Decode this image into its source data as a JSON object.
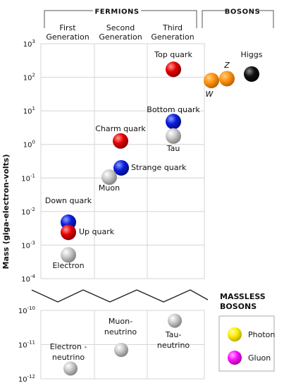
{
  "chart_data": {
    "type": "scatter",
    "ylabel": "Mass (giga-electron-volts)",
    "scale": "log",
    "group_headers": {
      "fermions": "FERMIONS",
      "bosons": "BOSONS"
    },
    "columns": [
      {
        "id": "c1",
        "line1": "First",
        "line2": "Generation"
      },
      {
        "id": "c2",
        "line1": "Second",
        "line2": "Generation"
      },
      {
        "id": "c3",
        "line1": "Third",
        "line2": "Generation"
      }
    ],
    "upper_axis": {
      "ylim_exp": [
        -4,
        3
      ],
      "ticks": [
        {
          "label": "10",
          "exp": "3"
        },
        {
          "label": "10",
          "exp": "2"
        },
        {
          "label": "10",
          "exp": "1"
        },
        {
          "label": "10",
          "exp": "0"
        },
        {
          "label": "10",
          "exp": "-1"
        },
        {
          "label": "10",
          "exp": "-2"
        },
        {
          "label": "10",
          "exp": "-3"
        },
        {
          "label": "10",
          "exp": "-4"
        }
      ]
    },
    "lower_axis": {
      "ylim_exp": [
        -12,
        -10
      ],
      "ticks": [
        {
          "label": "10",
          "exp": "-10"
        },
        {
          "label": "10",
          "exp": "-11"
        },
        {
          "label": "10",
          "exp": "-12"
        }
      ]
    },
    "particles": [
      {
        "name": "Top quark",
        "mass_gev": 173,
        "column": "c3",
        "color": "red",
        "label": "Top quark"
      },
      {
        "name": "Bottom quark",
        "mass_gev": 4.8,
        "column": "c3",
        "color": "blue",
        "label": "Bottom quark"
      },
      {
        "name": "Tau",
        "mass_gev": 1.78,
        "column": "c3",
        "color": "gray",
        "label": "Tau"
      },
      {
        "name": "Charm quark",
        "mass_gev": 1.27,
        "column": "c2",
        "color": "red",
        "label": "Charm quark"
      },
      {
        "name": "Strange quark",
        "mass_gev": 0.2,
        "column": "c2",
        "color": "blue",
        "label": "Strange quark"
      },
      {
        "name": "Muon",
        "mass_gev": 0.106,
        "column": "c2",
        "color": "gray",
        "label": "Muon"
      },
      {
        "name": "Down quark",
        "mass_gev": 0.0048,
        "column": "c1",
        "color": "blue",
        "label": "Down quark"
      },
      {
        "name": "Up quark",
        "mass_gev": 0.0024,
        "column": "c1",
        "color": "red",
        "label": "Up quark"
      },
      {
        "name": "Electron",
        "mass_gev": 0.000511,
        "column": "c1",
        "color": "gray",
        "label": "Electron"
      },
      {
        "name": "W",
        "mass_gev": 80.4,
        "column": "bosons",
        "color": "orange",
        "label": "W"
      },
      {
        "name": "Z",
        "mass_gev": 91.2,
        "column": "bosons",
        "color": "orange",
        "label": "Z"
      },
      {
        "name": "Higgs",
        "mass_gev": 125,
        "column": "bosons",
        "color": "black",
        "label": "Higgs"
      }
    ],
    "neutrinos": [
      {
        "name": "Electron-neutrino",
        "mass_gev": 2e-12,
        "column": "c1",
        "color": "gray",
        "line1": "Electron -",
        "line2": "neutrino"
      },
      {
        "name": "Muon-neutrino",
        "mass_gev": 7e-12,
        "column": "c2",
        "color": "gray",
        "line1": "Muon-",
        "line2": "neutrino"
      },
      {
        "name": "Tau-neutrino",
        "mass_gev": 5e-11,
        "column": "c3",
        "color": "gray",
        "line1": "Tau-",
        "line2": "neutrino"
      }
    ],
    "massless": {
      "title_line1": "MASSLESS",
      "title_line2": "BOSONS",
      "items": [
        {
          "name": "Photon",
          "color": "yellow"
        },
        {
          "name": "Gluon",
          "color": "magenta"
        }
      ]
    },
    "colors": {
      "red": [
        "#ff9a9a",
        "#e60000",
        "#7a0000"
      ],
      "blue": [
        "#8fa0ff",
        "#0a1ee0",
        "#000870"
      ],
      "gray": [
        "#ffffff",
        "#c8c8c8",
        "#7a7a7a"
      ],
      "orange": [
        "#ffd08a",
        "#ff9410",
        "#b35a00"
      ],
      "black": [
        "#8a8a8a",
        "#111111",
        "#000000"
      ],
      "yellow": [
        "#ffffb0",
        "#ffee00",
        "#b3a000"
      ],
      "magenta": [
        "#ffb0ff",
        "#ff10ff",
        "#990099"
      ]
    }
  }
}
